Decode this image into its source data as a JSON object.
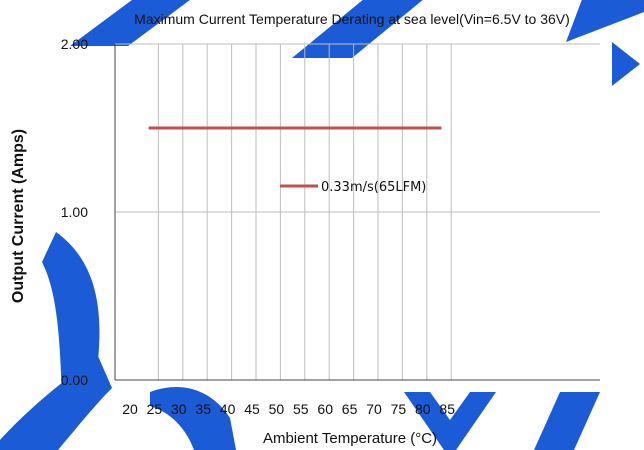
{
  "chart_data": {
    "type": "line",
    "title": "Maximum Current Temperature Derating at sea level(Vin=6.5V to 36V)",
    "xlabel": "Ambient Temperature (°C)",
    "ylabel": "Output Current (Amps)",
    "xlim": [
      20,
      85
    ],
    "ylim": [
      0,
      2
    ],
    "xticks": [
      20,
      25,
      30,
      35,
      40,
      45,
      50,
      55,
      60,
      65,
      70,
      75,
      80,
      85
    ],
    "xtick_labels": [
      "20",
      "25",
      "30",
      "35",
      "40",
      "45",
      "50",
      "55",
      "60",
      "65",
      "70",
      "75",
      "80",
      "85"
    ],
    "yticks": [
      0,
      1,
      2
    ],
    "ytick_labels": [
      "0.00",
      "1.00",
      "2.00"
    ],
    "grid": true,
    "legend_position": "center",
    "series": [
      {
        "name": "0.33m/s(65LFM)",
        "color": "#c0504d",
        "x": [
          23,
          83
        ],
        "y": [
          1.5,
          1.5
        ]
      }
    ]
  },
  "decor": {
    "accent": "#1b5cd6"
  }
}
